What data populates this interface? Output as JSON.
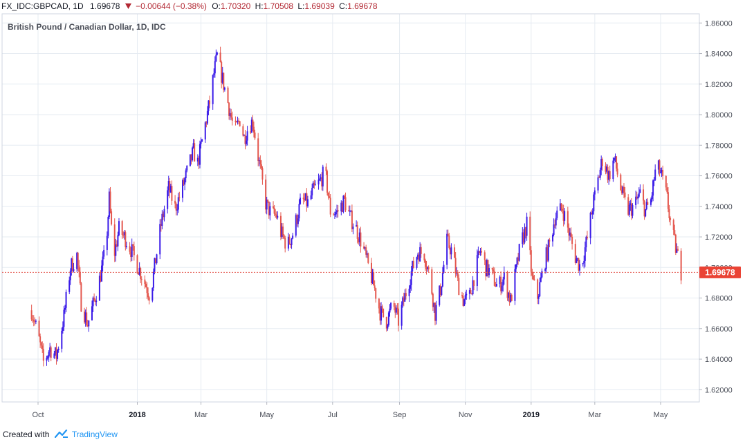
{
  "header": {
    "symbol": "FX_IDC:GBPCAD, 1D",
    "last": "1.69678",
    "change": "−0.00644 (−0.38%)",
    "o_label": "O:",
    "o_value": "1.70320",
    "h_label": "H:",
    "h_value": "1.70508",
    "l_label": "L:",
    "l_value": "1.69039",
    "c_label": "C:",
    "c_value": "1.69678"
  },
  "footer": {
    "created_with": "Created with",
    "brand": "TradingView"
  },
  "colors": {
    "up": "#3a1be8",
    "down": "#e4574e",
    "grid": "#e6ebf2",
    "axis_text": "#4a4e58",
    "price_line": "#e4574e",
    "price_label_bg": "#ea4335"
  },
  "chart_data": {
    "type": "candlestick",
    "title": "British Pound / Canadian Dollar, 1D, IDC",
    "x_ticks": [
      "Oct",
      "2018",
      "Mar",
      "May",
      "Jul",
      "Sep",
      "Nov",
      "2019",
      "Mar",
      "May"
    ],
    "x_ticks_bold": [
      "2018",
      "2019"
    ],
    "y_ticks": [
      "1.62000",
      "1.64000",
      "1.66000",
      "1.68000",
      "1.70000",
      "1.72000",
      "1.74000",
      "1.76000",
      "1.78000",
      "1.80000",
      "1.82000",
      "1.84000",
      "1.86000"
    ],
    "ylim": [
      1.612,
      1.866
    ],
    "last_price": 1.69678,
    "last_price_label": "1.69678",
    "grid": true,
    "series_path": [
      [
        "2017-09-25",
        1.672
      ],
      [
        "2017-10-01",
        1.656
      ],
      [
        "2017-10-06",
        1.638
      ],
      [
        "2017-10-12",
        1.647
      ],
      [
        "2017-10-18",
        1.642
      ],
      [
        "2017-10-25",
        1.668
      ],
      [
        "2017-10-31",
        1.7
      ],
      [
        "2017-11-06",
        1.708
      ],
      [
        "2017-11-10",
        1.677
      ],
      [
        "2017-11-16",
        1.663
      ],
      [
        "2017-11-22",
        1.678
      ],
      [
        "2017-11-27",
        1.692
      ],
      [
        "2017-12-03",
        1.713
      ],
      [
        "2017-12-06",
        1.745
      ],
      [
        "2017-12-10",
        1.706
      ],
      [
        "2017-12-15",
        1.725
      ],
      [
        "2017-12-21",
        1.719
      ],
      [
        "2017-12-26",
        1.712
      ],
      [
        "2018-01-02",
        1.7
      ],
      [
        "2018-01-07",
        1.692
      ],
      [
        "2018-01-13",
        1.681
      ],
      [
        "2018-01-18",
        1.705
      ],
      [
        "2018-01-23",
        1.728
      ],
      [
        "2018-01-30",
        1.752
      ],
      [
        "2018-02-05",
        1.739
      ],
      [
        "2018-02-10",
        1.748
      ],
      [
        "2018-02-16",
        1.762
      ],
      [
        "2018-02-22",
        1.776
      ],
      [
        "2018-02-26",
        1.768
      ],
      [
        "2018-03-04",
        1.79
      ],
      [
        "2018-03-09",
        1.808
      ],
      [
        "2018-03-13",
        1.827
      ],
      [
        "2018-03-16",
        1.838
      ],
      [
        "2018-03-20",
        1.826
      ],
      [
        "2018-03-26",
        1.808
      ],
      [
        "2018-04-01",
        1.788
      ],
      [
        "2018-04-06",
        1.797
      ],
      [
        "2018-04-10",
        1.785
      ],
      [
        "2018-04-14",
        1.792
      ],
      [
        "2018-04-18",
        1.796
      ],
      [
        "2018-04-24",
        1.768
      ],
      [
        "2018-04-30",
        1.742
      ],
      [
        "2018-05-05",
        1.735
      ],
      [
        "2018-05-10",
        1.734
      ],
      [
        "2018-05-14",
        1.723
      ],
      [
        "2018-05-20",
        1.714
      ],
      [
        "2018-05-25",
        1.722
      ],
      [
        "2018-06-02",
        1.744
      ],
      [
        "2018-06-08",
        1.742
      ],
      [
        "2018-06-13",
        1.75
      ],
      [
        "2018-06-19",
        1.756
      ],
      [
        "2018-06-24",
        1.763
      ],
      [
        "2018-06-29",
        1.737
      ],
      [
        "2018-07-05",
        1.736
      ],
      [
        "2018-07-12",
        1.744
      ],
      [
        "2018-07-17",
        1.733
      ],
      [
        "2018-07-22",
        1.727
      ],
      [
        "2018-07-28",
        1.716
      ],
      [
        "2018-08-03",
        1.701
      ],
      [
        "2018-08-09",
        1.686
      ],
      [
        "2018-08-14",
        1.671
      ],
      [
        "2018-08-20",
        1.665
      ],
      [
        "2018-08-26",
        1.676
      ],
      [
        "2018-08-31",
        1.665
      ],
      [
        "2018-09-06",
        1.681
      ],
      [
        "2018-09-12",
        1.697
      ],
      [
        "2018-09-18",
        1.71
      ],
      [
        "2018-09-24",
        1.709
      ],
      [
        "2018-09-30",
        1.69
      ],
      [
        "2018-10-04",
        1.67
      ],
      [
        "2018-10-09",
        1.686
      ],
      [
        "2018-10-15",
        1.717
      ],
      [
        "2018-10-20",
        1.71
      ],
      [
        "2018-10-25",
        1.69
      ],
      [
        "2018-10-30",
        1.679
      ],
      [
        "2018-11-04",
        1.678
      ],
      [
        "2018-11-10",
        1.697
      ],
      [
        "2018-11-15",
        1.711
      ],
      [
        "2018-11-20",
        1.7
      ],
      [
        "2018-11-25",
        1.696
      ],
      [
        "2018-12-01",
        1.687
      ],
      [
        "2018-12-07",
        1.693
      ],
      [
        "2018-12-13",
        1.678
      ],
      [
        "2018-12-18",
        1.698
      ],
      [
        "2018-12-22",
        1.714
      ],
      [
        "2018-12-28",
        1.728
      ],
      [
        "2019-01-02",
        1.692
      ],
      [
        "2019-01-07",
        1.681
      ],
      [
        "2019-01-13",
        1.702
      ],
      [
        "2019-01-19",
        1.718
      ],
      [
        "2019-01-23",
        1.733
      ],
      [
        "2019-01-30",
        1.739
      ],
      [
        "2019-02-05",
        1.723
      ],
      [
        "2019-02-11",
        1.707
      ],
      [
        "2019-02-16",
        1.7
      ],
      [
        "2019-02-22",
        1.719
      ],
      [
        "2019-02-27",
        1.74
      ],
      [
        "2019-03-04",
        1.757
      ],
      [
        "2019-03-08",
        1.771
      ],
      [
        "2019-03-14",
        1.76
      ],
      [
        "2019-03-19",
        1.771
      ],
      [
        "2019-03-25",
        1.752
      ],
      [
        "2019-03-31",
        1.737
      ],
      [
        "2019-04-06",
        1.74
      ],
      [
        "2019-04-12",
        1.748
      ],
      [
        "2019-04-17",
        1.737
      ],
      [
        "2019-04-22",
        1.744
      ],
      [
        "2019-04-27",
        1.767
      ],
      [
        "2019-05-01",
        1.762
      ],
      [
        "2019-05-07",
        1.745
      ],
      [
        "2019-05-11",
        1.725
      ],
      [
        "2019-05-15",
        1.713
      ],
      [
        "2019-05-20",
        1.697
      ]
    ]
  }
}
